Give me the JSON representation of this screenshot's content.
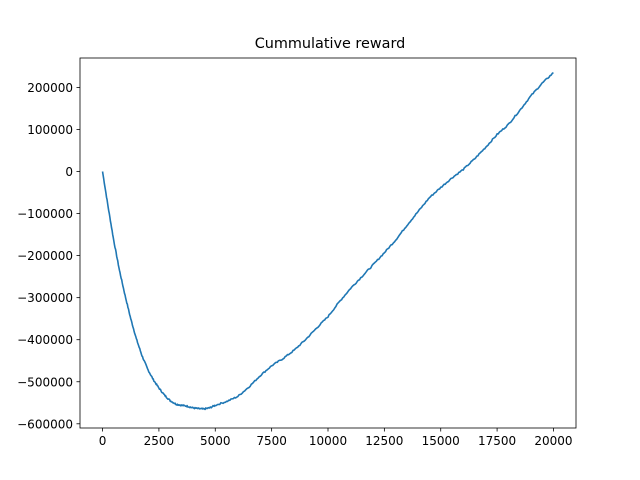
{
  "chart_data": {
    "type": "line",
    "title": "Cummulative reward",
    "xlabel": "",
    "ylabel": "",
    "xlim": [
      -1000,
      21000
    ],
    "ylim": [
      -610000,
      270000
    ],
    "x_ticks": [
      0,
      2500,
      5000,
      7500,
      10000,
      12500,
      15000,
      17500,
      20000
    ],
    "x_tick_labels": [
      "0",
      "2500",
      "5000",
      "7500",
      "10000",
      "12500",
      "15000",
      "17500",
      "20000"
    ],
    "y_ticks": [
      200000,
      100000,
      0,
      -100000,
      -200000,
      -300000,
      -400000,
      -500000,
      -600000
    ],
    "y_tick_labels": [
      "200000",
      "100000",
      "0",
      "−100000",
      "−200000",
      "−300000",
      "−400000",
      "−500000",
      "−600000"
    ],
    "grid": false,
    "legend": "none",
    "series": [
      {
        "color": "#1f77b4",
        "x": [
          0,
          250,
          500,
          750,
          1000,
          1250,
          1500,
          1750,
          2000,
          2250,
          2500,
          2750,
          3000,
          3250,
          3500,
          3750,
          4000,
          4250,
          4500,
          4750,
          5000,
          5500,
          6000,
          6500,
          7000,
          7500,
          8000,
          8500,
          9000,
          9500,
          10000,
          10500,
          11000,
          11500,
          12000,
          12500,
          13000,
          13500,
          14000,
          14500,
          15000,
          15500,
          16000,
          16500,
          17000,
          17500,
          18000,
          18500,
          19000,
          19500,
          20000
        ],
        "y": [
          0,
          -85000,
          -165000,
          -235000,
          -295000,
          -350000,
          -398000,
          -438000,
          -470000,
          -495000,
          -515000,
          -532000,
          -545000,
          -553000,
          -556000,
          -558000,
          -562000,
          -564000,
          -565000,
          -562000,
          -556000,
          -547000,
          -535000,
          -512000,
          -485000,
          -462000,
          -445000,
          -425000,
          -400000,
          -372000,
          -345000,
          -310000,
          -278000,
          -250000,
          -222000,
          -193000,
          -163000,
          -128000,
          -95000,
          -62000,
          -38000,
          -15000,
          5000,
          30000,
          58000,
          88000,
          112000,
          145000,
          180000,
          210000,
          235000
        ]
      }
    ]
  }
}
